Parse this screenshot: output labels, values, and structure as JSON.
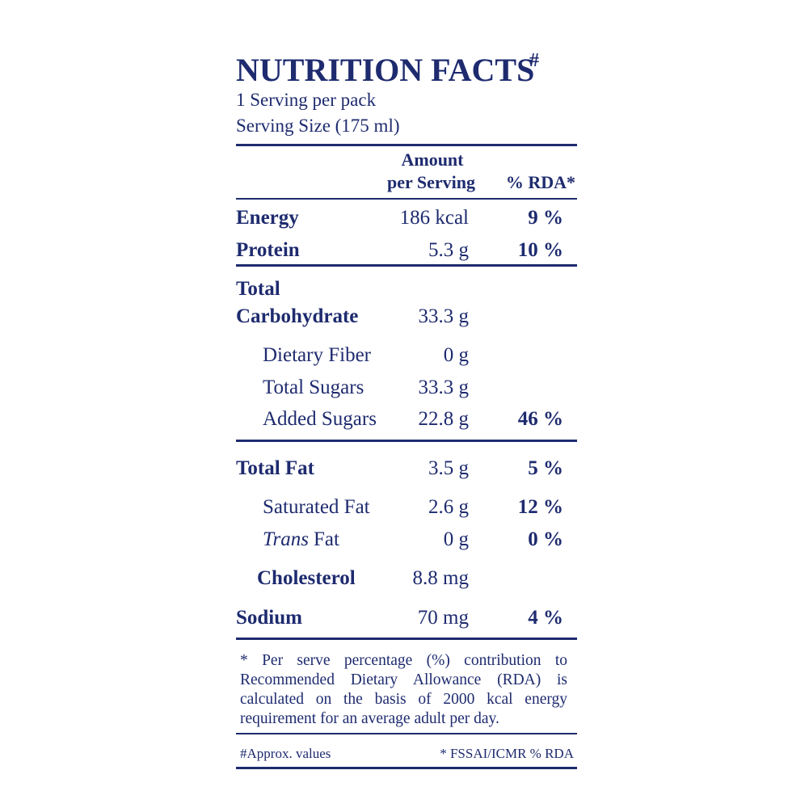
{
  "header": {
    "title": "NUTRITION FACTS",
    "title_mark": "#",
    "servings": "1 Serving per pack",
    "serving_size": "Serving Size (175 ml)"
  },
  "table": {
    "amount_header": [
      "Amount",
      "per Serving"
    ],
    "rda_header": "% RDA*",
    "rows": [
      {
        "name": [
          "Energy"
        ],
        "amount": "186 kcal",
        "rda": "9 %"
      },
      {
        "name": [
          "Protein"
        ],
        "amount": "5.3 g",
        "rda": "10 %"
      },
      {
        "name": [
          "Total",
          "Carbohydrate"
        ],
        "amount": "33.3 g"
      },
      {
        "name": [
          "Dietary Fiber"
        ],
        "amount": "0 g"
      },
      {
        "name": [
          "Total Sugars"
        ],
        "amount": "33.3 g"
      },
      {
        "name": [
          "Added Sugars"
        ],
        "amount": "22.8 g",
        "rda": "46 %"
      },
      {
        "name": [
          "Total Fat"
        ],
        "amount": "3.5 g",
        "rda": "5 %"
      },
      {
        "name": [
          "Saturated Fat"
        ],
        "amount": "2.6 g",
        "rda": "12 %"
      },
      {
        "name": [
          "Trans",
          "Fat"
        ],
        "amount": "0 g",
        "rda": "0 %"
      },
      {
        "name": [
          "Cholesterol"
        ],
        "amount": "8.8 mg"
      },
      {
        "name": [
          "Sodium"
        ],
        "amount": "70 mg",
        "rda": "4 %"
      }
    ]
  },
  "footnote": "* Per serve percentage (%) contribution to Recommended Dietary Allowance (RDA) is calculated on the basis of 2000 kcal energy requirement for an average adult per day.",
  "footer": {
    "left": "#Approx. values",
    "right": "* FSSAI/ICMR % RDA"
  }
}
